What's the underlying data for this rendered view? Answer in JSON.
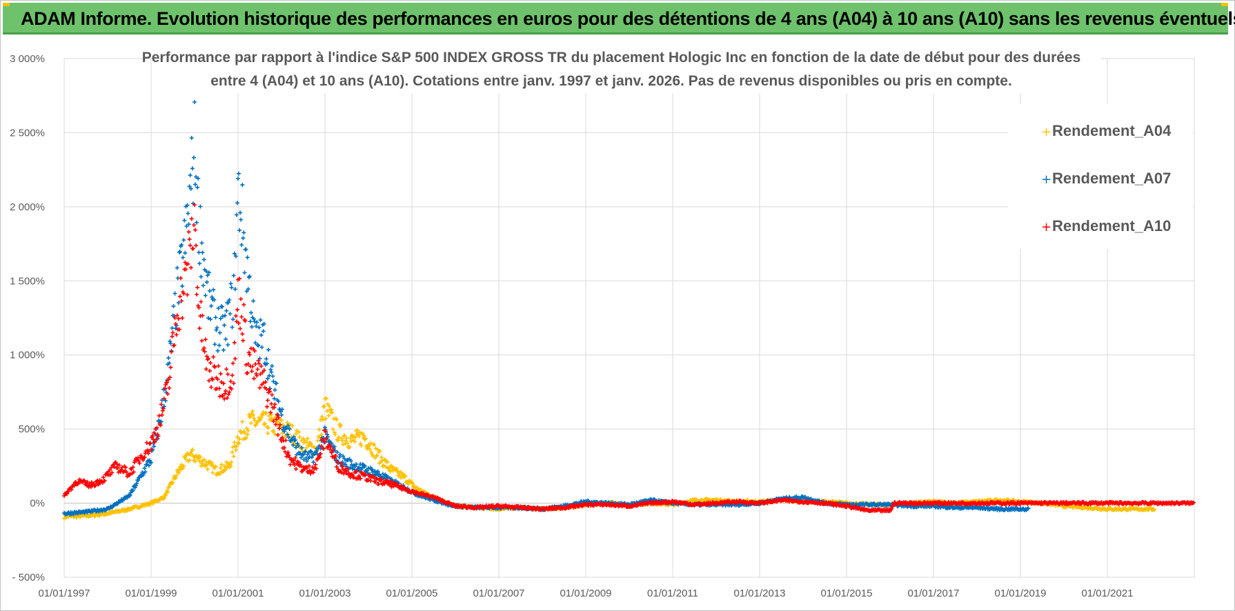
{
  "header": {
    "title": "ADAM Informe. Evolution historique des performances en euros pour des détentions de 4 ans (A04) à 10 ans (A10) sans les revenus éventuels"
  },
  "chart_data": {
    "type": "scatter",
    "subtitle_line1": "Performance par rapport à l'indice S&P 500 INDEX GROSS TR  du placement Hologic Inc en fonction de la date de début pour des durées",
    "subtitle_line2": "entre 4 (A04) et 10 ans (A10).  Cotations entre janv. 1997 et janv. 2026. Pas de revenus disponibles ou pris en compte.",
    "y_ticks": [
      "3 000%",
      "2 500%",
      "2 000%",
      "1 500%",
      "1 000%",
      "500%",
      "0%",
      "- 500%"
    ],
    "x_ticks": [
      "01/01/1997",
      "01/01/1999",
      "01/01/2001",
      "01/01/2003",
      "01/01/2005",
      "01/01/2007",
      "01/01/2009",
      "01/01/2011",
      "01/01/2013",
      "01/01/2015",
      "01/01/2017",
      "01/01/2019",
      "01/01/2021"
    ],
    "ylim": [
      -500,
      3000
    ],
    "xlim": [
      "01/01/1997",
      "01/01/2023"
    ],
    "grid": true,
    "legend_position": "top-right",
    "series": [
      {
        "name": "Rendement_A04",
        "color": "#ffc000",
        "points": [
          [
            1997.0,
            -90
          ],
          [
            1997.5,
            -85
          ],
          [
            1998.0,
            -70
          ],
          [
            1998.5,
            -40
          ],
          [
            1999.0,
            0
          ],
          [
            1999.3,
            40
          ],
          [
            1999.6,
            200
          ],
          [
            1999.9,
            330
          ],
          [
            2000.2,
            280
          ],
          [
            2000.5,
            220
          ],
          [
            2000.8,
            250
          ],
          [
            2001.0,
            450
          ],
          [
            2001.3,
            550
          ],
          [
            2001.6,
            540
          ],
          [
            2001.9,
            520
          ],
          [
            2002.2,
            480
          ],
          [
            2002.5,
            400
          ],
          [
            2002.8,
            360
          ],
          [
            2003.0,
            650
          ],
          [
            2003.3,
            480
          ],
          [
            2003.6,
            420
          ],
          [
            2003.9,
            450
          ],
          [
            2004.2,
            330
          ],
          [
            2004.5,
            230
          ],
          [
            2004.8,
            180
          ],
          [
            2005.1,
            100
          ],
          [
            2005.5,
            40
          ],
          [
            2006.0,
            -20
          ],
          [
            2006.5,
            -30
          ],
          [
            2007.0,
            -40
          ],
          [
            2007.5,
            -30
          ],
          [
            2008.0,
            -40
          ],
          [
            2008.5,
            -30
          ],
          [
            2009.0,
            -10
          ],
          [
            2009.5,
            0
          ],
          [
            2010.0,
            -10
          ],
          [
            2010.5,
            0
          ],
          [
            2011.0,
            -10
          ],
          [
            2011.5,
            20
          ],
          [
            2012.0,
            20
          ],
          [
            2012.5,
            10
          ],
          [
            2013.0,
            10
          ],
          [
            2013.5,
            20
          ],
          [
            2014.0,
            10
          ],
          [
            2014.5,
            10
          ],
          [
            2015.0,
            0
          ],
          [
            2015.5,
            -10
          ],
          [
            2016.0,
            -10
          ],
          [
            2016.5,
            0
          ],
          [
            2017.0,
            10
          ],
          [
            2017.5,
            0
          ],
          [
            2018.0,
            10
          ],
          [
            2018.5,
            20
          ],
          [
            2019.0,
            10
          ],
          [
            2019.5,
            0
          ],
          [
            2020.0,
            -20
          ],
          [
            2020.5,
            -30
          ],
          [
            2021.0,
            -40
          ],
          [
            2021.5,
            -40
          ],
          [
            2022.0,
            -40
          ],
          [
            2022.1,
            -40
          ]
        ]
      },
      {
        "name": "Rendement_A07",
        "color": "#0070c0",
        "points": [
          [
            1997.0,
            -70
          ],
          [
            1997.5,
            -60
          ],
          [
            1998.0,
            -40
          ],
          [
            1998.5,
            50
          ],
          [
            1998.8,
            200
          ],
          [
            1999.0,
            300
          ],
          [
            1999.2,
            550
          ],
          [
            1999.4,
            900
          ],
          [
            1999.6,
            1400
          ],
          [
            1999.8,
            1800
          ],
          [
            2000.0,
            2400
          ],
          [
            2000.1,
            1900
          ],
          [
            2000.3,
            1400
          ],
          [
            2000.5,
            1200
          ],
          [
            2000.7,
            1150
          ],
          [
            2000.9,
            1400
          ],
          [
            2001.0,
            2100
          ],
          [
            2001.1,
            1900
          ],
          [
            2001.2,
            1600
          ],
          [
            2001.4,
            1100
          ],
          [
            2001.6,
            1100
          ],
          [
            2001.8,
            800
          ],
          [
            2002.0,
            600
          ],
          [
            2002.2,
            450
          ],
          [
            2002.4,
            350
          ],
          [
            2002.6,
            300
          ],
          [
            2002.8,
            330
          ],
          [
            2003.0,
            450
          ],
          [
            2003.3,
            300
          ],
          [
            2003.6,
            260
          ],
          [
            2003.9,
            230
          ],
          [
            2004.2,
            200
          ],
          [
            2004.5,
            150
          ],
          [
            2004.8,
            110
          ],
          [
            2005.1,
            60
          ],
          [
            2005.5,
            20
          ],
          [
            2006.0,
            -20
          ],
          [
            2006.5,
            -30
          ],
          [
            2007.0,
            -30
          ],
          [
            2007.5,
            -30
          ],
          [
            2008.0,
            -40
          ],
          [
            2008.5,
            -20
          ],
          [
            2009.0,
            10
          ],
          [
            2009.5,
            0
          ],
          [
            2010.0,
            -10
          ],
          [
            2010.5,
            20
          ],
          [
            2011.0,
            0
          ],
          [
            2011.5,
            -10
          ],
          [
            2012.0,
            -10
          ],
          [
            2012.5,
            -10
          ],
          [
            2013.0,
            0
          ],
          [
            2013.5,
            30
          ],
          [
            2014.0,
            40
          ],
          [
            2014.5,
            0
          ],
          [
            2015.0,
            -10
          ],
          [
            2015.5,
            -10
          ],
          [
            2016.0,
            -10
          ],
          [
            2016.5,
            -20
          ],
          [
            2017.0,
            -20
          ],
          [
            2017.5,
            -30
          ],
          [
            2018.0,
            -30
          ],
          [
            2018.5,
            -40
          ],
          [
            2019.0,
            -40
          ],
          [
            2019.2,
            -40
          ]
        ]
      },
      {
        "name": "Rendement_A10",
        "color": "#ff0000",
        "points": [
          [
            1997.0,
            50
          ],
          [
            1997.3,
            150
          ],
          [
            1997.6,
            120
          ],
          [
            1997.9,
            160
          ],
          [
            1998.2,
            250
          ],
          [
            1998.5,
            200
          ],
          [
            1998.8,
            330
          ],
          [
            1999.0,
            400
          ],
          [
            1999.2,
            550
          ],
          [
            1999.4,
            800
          ],
          [
            1999.6,
            1300
          ],
          [
            1999.8,
            1500
          ],
          [
            2000.0,
            1900
          ],
          [
            2000.1,
            1300
          ],
          [
            2000.3,
            900
          ],
          [
            2000.5,
            850
          ],
          [
            2000.7,
            800
          ],
          [
            2000.9,
            900
          ],
          [
            2001.0,
            1400
          ],
          [
            2001.1,
            1300
          ],
          [
            2001.2,
            1000
          ],
          [
            2001.4,
            900
          ],
          [
            2001.6,
            800
          ],
          [
            2001.8,
            650
          ],
          [
            2002.0,
            450
          ],
          [
            2002.2,
            300
          ],
          [
            2002.4,
            250
          ],
          [
            2002.6,
            220
          ],
          [
            2002.8,
            250
          ],
          [
            2003.0,
            450
          ],
          [
            2003.3,
            250
          ],
          [
            2003.6,
            200
          ],
          [
            2003.9,
            180
          ],
          [
            2004.2,
            150
          ],
          [
            2004.5,
            130
          ],
          [
            2004.8,
            100
          ],
          [
            2005.1,
            70
          ],
          [
            2005.5,
            40
          ],
          [
            2006.0,
            -20
          ],
          [
            2006.5,
            -30
          ],
          [
            2007.0,
            -20
          ],
          [
            2007.5,
            -30
          ],
          [
            2008.0,
            -40
          ],
          [
            2008.5,
            -30
          ],
          [
            2009.0,
            -10
          ],
          [
            2009.5,
            -10
          ],
          [
            2010.0,
            -20
          ],
          [
            2010.5,
            0
          ],
          [
            2011.0,
            10
          ],
          [
            2011.5,
            -10
          ],
          [
            2012.0,
            0
          ],
          [
            2012.5,
            10
          ],
          [
            2013.0,
            0
          ],
          [
            2013.5,
            20
          ],
          [
            2014.0,
            10
          ],
          [
            2014.5,
            0
          ],
          [
            2015.0,
            -20
          ],
          [
            2015.5,
            -50
          ],
          [
            2016.0,
            -50
          ],
          [
            2016.1,
            0
          ],
          [
            2017.0,
            0
          ],
          [
            2018.0,
            0
          ],
          [
            2019.0,
            0
          ],
          [
            2020.0,
            0
          ],
          [
            2021.0,
            0
          ],
          [
            2022.0,
            0
          ],
          [
            2023.0,
            0
          ]
        ]
      }
    ]
  }
}
